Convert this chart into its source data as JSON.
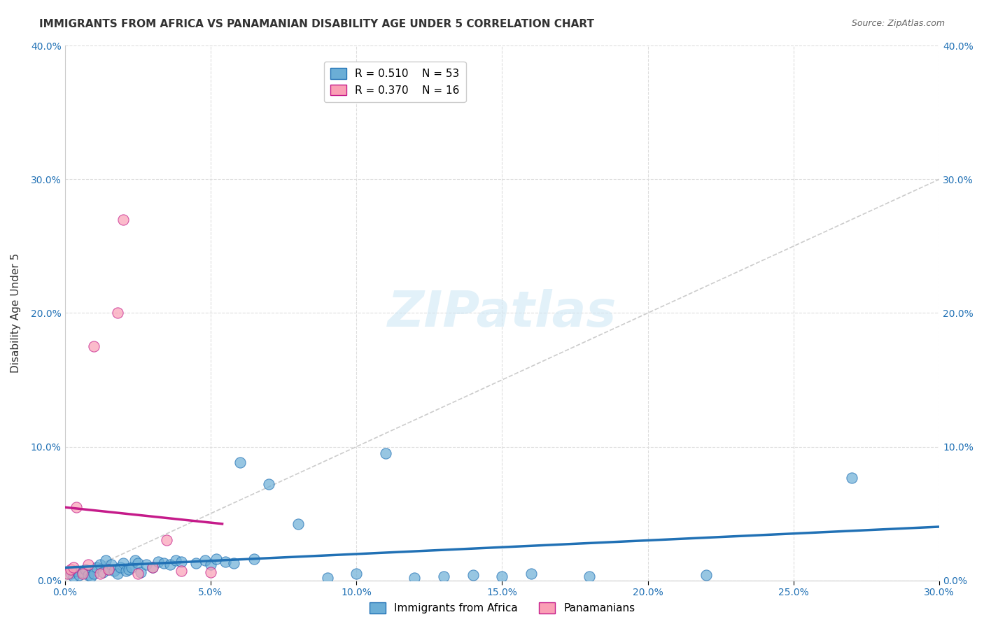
{
  "title": "IMMIGRANTS FROM AFRICA VS PANAMANIAN DISABILITY AGE UNDER 5 CORRELATION CHART",
  "source": "Source: ZipAtlas.com",
  "xlabel_bottom": "",
  "ylabel": "Disability Age Under 5",
  "xlim": [
    0,
    0.3
  ],
  "ylim": [
    0,
    0.4
  ],
  "xticks": [
    0.0,
    0.05,
    0.1,
    0.15,
    0.2,
    0.25,
    0.3
  ],
  "yticks": [
    0.0,
    0.1,
    0.2,
    0.3,
    0.4
  ],
  "xtick_labels": [
    "0.0%",
    "5.0%",
    "10.0%",
    "15.0%",
    "20.0%",
    "25.0%",
    "30.0%"
  ],
  "ytick_labels": [
    "0.0%",
    "10.0%",
    "20.0%",
    "30.0%",
    "40.0%"
  ],
  "legend_labels": [
    "Immigrants from Africa",
    "Panamanians"
  ],
  "R_blue": 0.51,
  "N_blue": 53,
  "R_pink": 0.37,
  "N_pink": 16,
  "blue_color": "#6baed6",
  "pink_color": "#fa9fb5",
  "blue_line_color": "#2171b5",
  "pink_line_color": "#c51b8a",
  "watermark": "ZIPatlas",
  "blue_scatter_x": [
    0.002,
    0.003,
    0.004,
    0.005,
    0.006,
    0.007,
    0.008,
    0.009,
    0.01,
    0.011,
    0.012,
    0.013,
    0.014,
    0.015,
    0.016,
    0.017,
    0.018,
    0.019,
    0.02,
    0.021,
    0.022,
    0.023,
    0.024,
    0.025,
    0.026,
    0.028,
    0.03,
    0.032,
    0.034,
    0.036,
    0.038,
    0.04,
    0.045,
    0.048,
    0.05,
    0.052,
    0.055,
    0.058,
    0.06,
    0.065,
    0.07,
    0.08,
    0.09,
    0.1,
    0.11,
    0.12,
    0.13,
    0.14,
    0.15,
    0.16,
    0.18,
    0.22,
    0.27
  ],
  "blue_scatter_y": [
    0.005,
    0.003,
    0.007,
    0.004,
    0.006,
    0.008,
    0.004,
    0.003,
    0.005,
    0.01,
    0.012,
    0.006,
    0.015,
    0.008,
    0.012,
    0.007,
    0.005,
    0.01,
    0.013,
    0.007,
    0.008,
    0.01,
    0.015,
    0.013,
    0.006,
    0.012,
    0.01,
    0.014,
    0.013,
    0.012,
    0.015,
    0.014,
    0.013,
    0.015,
    0.012,
    0.016,
    0.014,
    0.013,
    0.088,
    0.016,
    0.072,
    0.042,
    0.002,
    0.005,
    0.095,
    0.002,
    0.003,
    0.004,
    0.003,
    0.005,
    0.003,
    0.004,
    0.077
  ],
  "pink_scatter_x": [
    0.001,
    0.002,
    0.003,
    0.004,
    0.006,
    0.008,
    0.01,
    0.012,
    0.015,
    0.018,
    0.02,
    0.025,
    0.03,
    0.035,
    0.04,
    0.05
  ],
  "pink_scatter_y": [
    0.005,
    0.008,
    0.01,
    0.055,
    0.005,
    0.012,
    0.175,
    0.005,
    0.008,
    0.2,
    0.27,
    0.005,
    0.01,
    0.03,
    0.007,
    0.006
  ]
}
